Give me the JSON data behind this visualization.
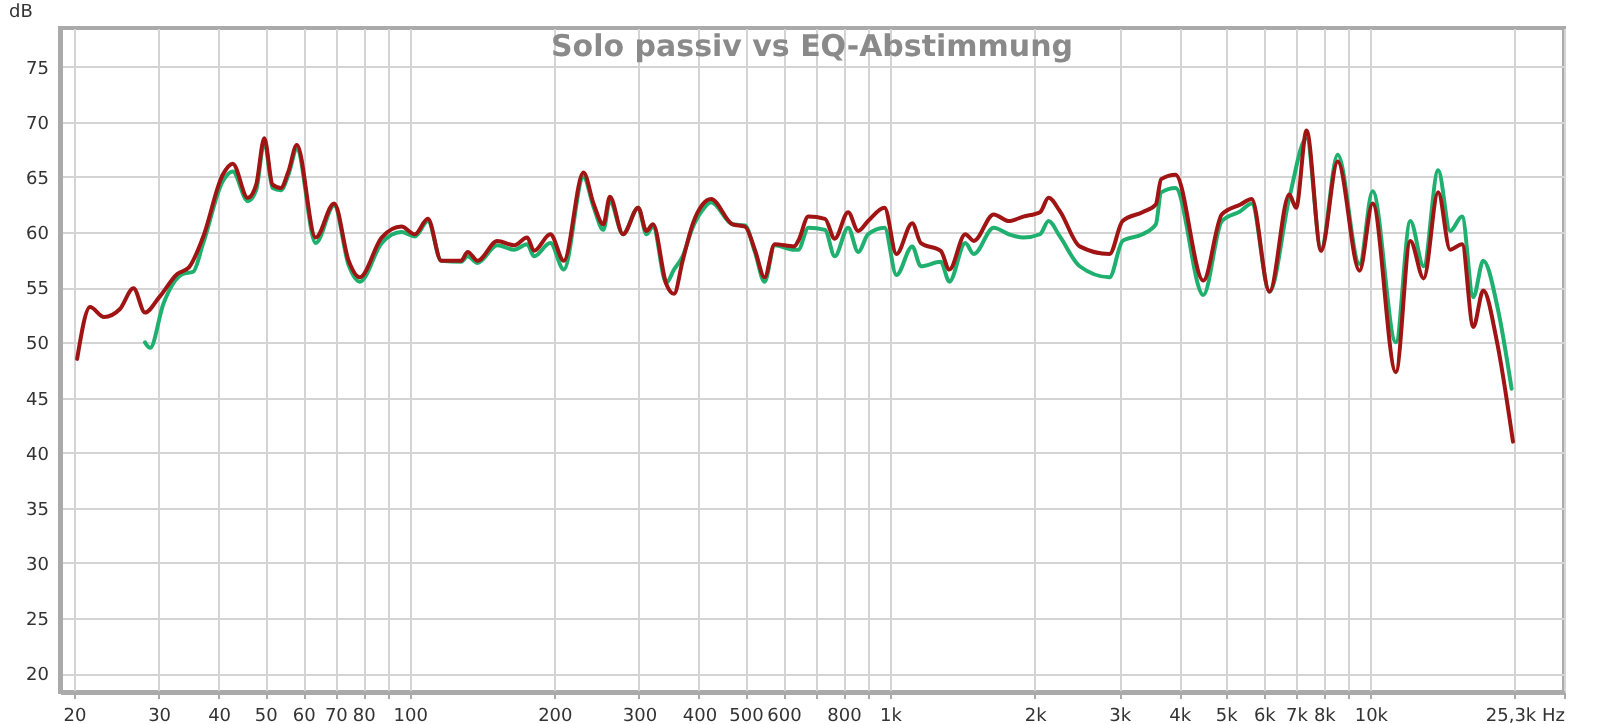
{
  "chart_data": {
    "type": "line",
    "title": "Solo passiv vs EQ-Abstimmung",
    "ylabel": "dB",
    "log": "x",
    "grid": true,
    "line_style": "solid",
    "xlim": [
      18.7,
      25300
    ],
    "ylim": [
      18.3,
      78.5
    ],
    "xticks": [
      20,
      30,
      40,
      50,
      60,
      70,
      80,
      {
        "value": 90,
        "label": null
      },
      100,
      200,
      300,
      400,
      500,
      600,
      {
        "value": 700,
        "label": null
      },
      800,
      {
        "value": 900,
        "label": null
      },
      {
        "value": 1000,
        "label": "1k"
      },
      {
        "value": 2000,
        "label": "2k"
      },
      {
        "value": 3000,
        "label": "3k"
      },
      {
        "value": 4000,
        "label": "4k"
      },
      {
        "value": 5000,
        "label": "5k"
      },
      {
        "value": 6000,
        "label": "6k"
      },
      {
        "value": 7000,
        "label": "7k"
      },
      {
        "value": 8000,
        "label": "8k"
      },
      {
        "value": 9000,
        "label": null
      },
      {
        "value": 10000,
        "label": "10k"
      },
      {
        "value": 20000,
        "label": null
      },
      {
        "value": 25300,
        "label": "25,3k Hz"
      }
    ],
    "yticks": [
      20,
      25,
      30,
      35,
      40,
      45,
      50,
      55,
      60,
      65,
      70,
      75
    ],
    "series": [
      {
        "color": "#1fb070",
        "x": [
          28.1,
          28.8,
          30.7,
          33.7,
          35.4,
          37.1,
          40.8,
          42.8,
          46.0,
          47.9,
          49.8,
          51.8,
          53.9,
          55.9,
          58.2,
          63.7,
          69.6,
          74.6,
          78.7,
          87.4,
          96.1,
          102.5,
          109.1,
          116.3,
          127.9,
          132,
          138.4,
          152.2,
          164.9,
          175.6,
          181.4,
          196.2,
          209.3,
          230,
          241.3,
          253,
          261,
          278,
          299,
          311,
          321,
          342,
          355,
          370,
          388,
          407,
          424,
          470,
          499,
          523,
          548,
          575,
          632,
          644,
          676,
          732,
          767,
          818,
          858,
          900,
          974,
          1031,
          1112,
          1159,
          1275,
          1329,
          1434,
          1494,
          1643,
          1767,
          1894,
          2052,
          2138,
          2257,
          2482,
          2863,
          3049,
          3353,
          3575,
          3668,
          3930,
          4489,
          4906,
          5366,
          5660,
          6166,
          6780,
          7365,
          7895,
          8551,
          9494,
          10110,
          11300,
          12110,
          12910,
          13840,
          14660,
          15520,
          16380,
          17180,
          18430,
          19680
        ],
        "values": [
          50.0,
          49.5,
          53.5,
          56.2,
          56.4,
          58.9,
          64.6,
          65.5,
          62.8,
          63.8,
          68.2,
          64.0,
          63.8,
          65.2,
          67.5,
          59.0,
          62.4,
          57.0,
          55.5,
          59.0,
          60.0,
          59.6,
          61.0,
          57.4,
          57.3,
          57.8,
          57.2,
          58.8,
          58.4,
          58.9,
          57.8,
          59.0,
          56.6,
          65.0,
          62.3,
          60.2,
          62.8,
          59.8,
          62.2,
          59.8,
          60.5,
          55.4,
          56.6,
          57.8,
          60.4,
          62.0,
          62.7,
          60.7,
          60.6,
          58.2,
          55.5,
          58.8,
          58.4,
          58.4,
          60.4,
          60.2,
          57.8,
          60.4,
          58.2,
          59.8,
          60.4,
          56.1,
          58.7,
          56.9,
          57.3,
          55.5,
          59.0,
          58.0,
          60.4,
          59.8,
          59.5,
          59.8,
          61.0,
          59.6,
          56.9,
          55.9,
          59.2,
          59.8,
          60.7,
          63.6,
          64.0,
          54.3,
          61.0,
          61.9,
          62.6,
          54.6,
          63.1,
          68.5,
          58.5,
          67.0,
          57.1,
          63.7,
          50.0,
          61.0,
          56.9,
          65.6,
          60.1,
          61.4,
          54.1,
          57.4,
          53.0,
          45.8
        ]
      },
      {
        "color": "#a01414",
        "x": [
          20.3,
          21.6,
          23.1,
          24.9,
          26.6,
          28.1,
          30.1,
          32.8,
          34.7,
          37.1,
          40.8,
          42.8,
          46.0,
          47.9,
          49.8,
          51.8,
          53.9,
          55.9,
          58.2,
          63.7,
          69.6,
          74.6,
          78.7,
          87.4,
          96.1,
          102.5,
          109.1,
          116.3,
          127.9,
          132,
          138.4,
          152.2,
          164.9,
          175.6,
          181.4,
          196.2,
          209.3,
          230,
          241.3,
          253,
          261,
          278,
          299,
          311,
          321,
          342,
          355,
          370,
          388,
          407,
          424,
          470,
          499,
          523,
          548,
          575,
          632,
          644,
          676,
          732,
          767,
          818,
          858,
          900,
          974,
          1031,
          1112,
          1159,
          1275,
          1329,
          1434,
          1494,
          1643,
          1767,
          1894,
          2052,
          2138,
          2257,
          2482,
          2863,
          3049,
          3353,
          3575,
          3668,
          3930,
          4489,
          4906,
          5366,
          5660,
          6166,
          6780,
          7003,
          7365,
          7895,
          8551,
          9494,
          10110,
          11300,
          12110,
          12910,
          13840,
          14660,
          15520,
          16380,
          17180,
          18300,
          19810
        ],
        "values": [
          48.5,
          53.2,
          52.3,
          53.0,
          54.9,
          52.7,
          54.1,
          56.2,
          56.8,
          59.5,
          65.2,
          66.2,
          63.1,
          64.3,
          68.5,
          64.3,
          64.0,
          65.5,
          67.9,
          59.5,
          62.6,
          57.4,
          55.9,
          59.5,
          60.5,
          59.8,
          61.2,
          57.4,
          57.4,
          58.2,
          57.4,
          59.2,
          58.8,
          59.5,
          58.3,
          59.8,
          57.4,
          65.4,
          62.6,
          60.7,
          63.2,
          59.8,
          62.2,
          60.1,
          60.7,
          55.3,
          54.4,
          57.4,
          60.7,
          62.5,
          63.0,
          60.7,
          60.5,
          58.4,
          55.9,
          58.9,
          58.7,
          59.2,
          61.4,
          61.2,
          59.4,
          61.8,
          60.1,
          61.0,
          62.2,
          58.0,
          60.8,
          59.0,
          58.3,
          56.6,
          59.8,
          59.2,
          61.6,
          61.0,
          61.4,
          61.8,
          63.1,
          61.9,
          58.7,
          58.0,
          61.0,
          61.8,
          62.5,
          64.8,
          65.2,
          55.6,
          61.6,
          62.5,
          63.0,
          54.6,
          63.4,
          62.2,
          69.2,
          58.3,
          66.4,
          56.5,
          62.6,
          47.3,
          59.2,
          55.8,
          63.6,
          58.4,
          58.9,
          51.4,
          54.7,
          50.3,
          41.0
        ]
      }
    ]
  }
}
